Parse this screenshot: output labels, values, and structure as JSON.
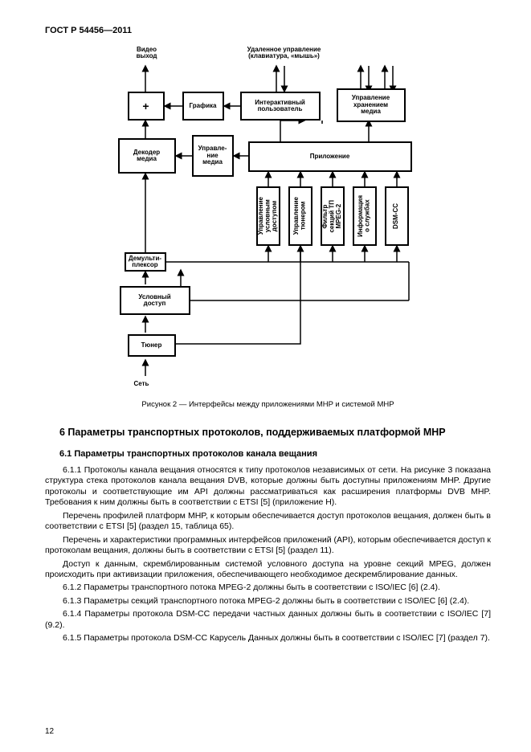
{
  "header": "ГОСТ Р 54456—2011",
  "diagram": {
    "labels": {
      "video_out": "Видео\nвыход",
      "remote": "Удаленное управление\n(клавиатура, «мышь»)",
      "plus": "+",
      "graphics": "Графика",
      "ui": "Интерактивный\nпользователь",
      "storage": "Управление\nхранением\nмедиа",
      "decoder": "Декодер\nмедиа",
      "media_mgmt": "Управле-\nние\nмедиа",
      "app": "Приложение",
      "ca_mgmt": "Управление\nусловным\nдоступом",
      "tuner_mgmt": "Управление\nтюнером",
      "filter": "Фильтр\nсекций ТП\nMPEG-2",
      "service_info": "Информация\nо службах",
      "dsmcc": "DSM-CC",
      "demux": "Демульти-\nплексор",
      "ca": "Условный\nдоступ",
      "tuner": "Тюнер",
      "network": "Сеть"
    },
    "caption": "Рисунок 2 — Интерфейсы между приложениями MHP и системой MHP"
  },
  "section": {
    "title": "6  Параметры транспортных протоколов, поддерживаемых платформой MHP",
    "subsection_title": "6.1  Параметры транспортных протоколов канала вещания",
    "p611": "6.1.1  Протоколы канала вещания относятся к типу протоколов независимых от сети. На рисунке 3 показана структура стека протоколов канала вещания DVB, которые должны быть доступны приложениям MHP. Другие протоколы и соответствующие им API должны рассматриваться как расширения платформы DVB MHP. Требования к ним должны быть в соответствии с ETSI [5] (приложение H).",
    "p_profiles": "Перечень профилей платформ MHP, к которым обеспечивается доступ протоколов вещания, должен быть в соответствии с ETSI [5] (раздел 15, таблица 65).",
    "p_api": "Перечень и характеристики программных интерфейсов приложений (API), которым обеспечивается доступ к протоколам вещания, должны быть в соответствии с ETSI [5] (раздел 11).",
    "p_access": "Доступ к данным, скремблированным системой условного доступа на уровне секций MPEG, должен происходить при активизации приложения, обеспечивающего необходимое дескремблирование данных.",
    "p612": "6.1.2  Параметры транспортного потока MPEG-2 должны быть в соответствии с ISO/IEC [6] (2.4).",
    "p613": "6.1.3  Параметры секций транспортного потока MPEG-2 должны быть в соответствии с ISO/IEC [6] (2.4).",
    "p614": "6.1.4  Параметры протокола DSM-CC передачи частных данных должны быть в соответствии с ISO/IEC [7] (9.2).",
    "p615": "6.1.5  Параметры протокола DSM-CC Карусель Данных должны быть в соответствии с ISO/IEC [7] (раздел 7)."
  },
  "page_number": "12"
}
